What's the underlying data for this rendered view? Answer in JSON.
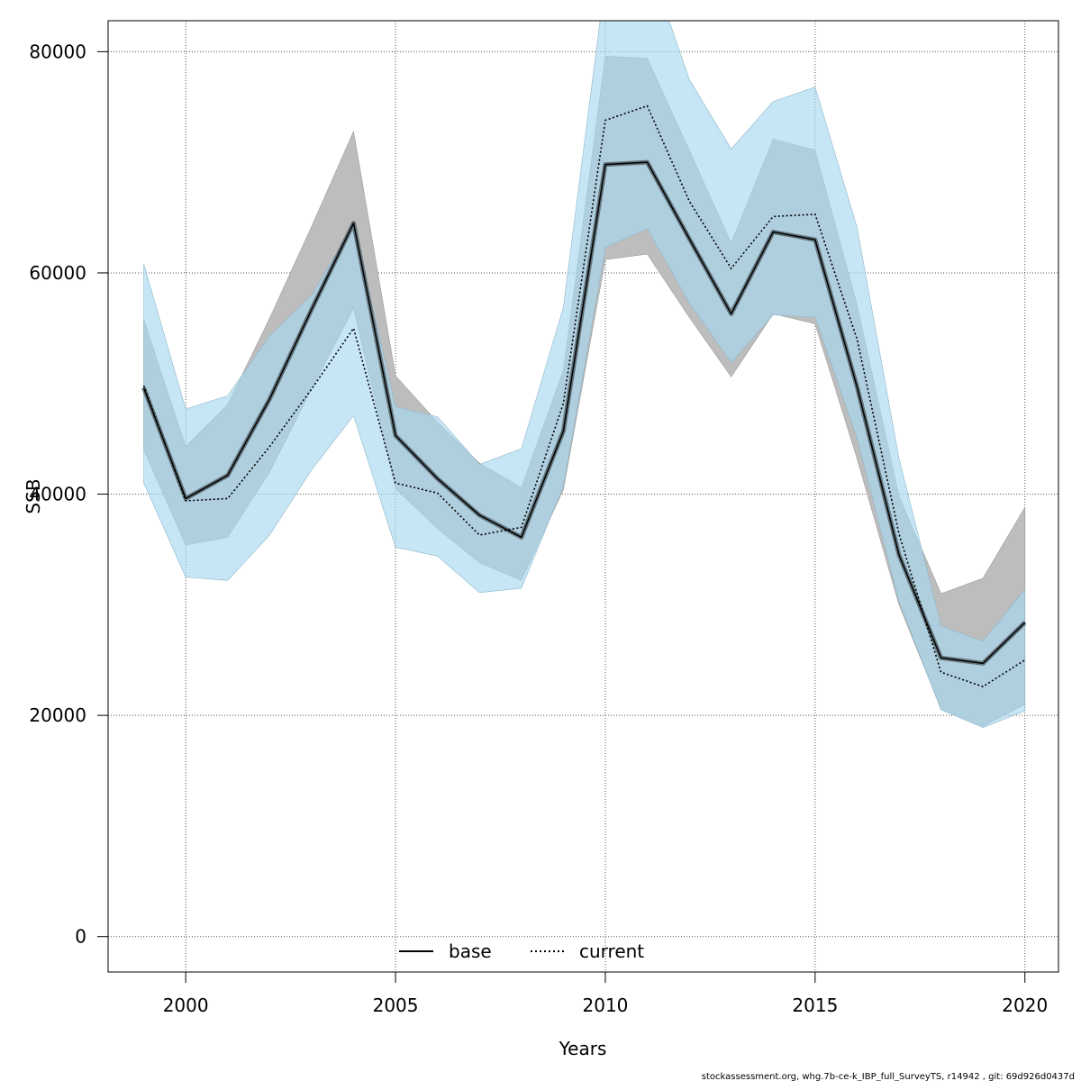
{
  "chart_data": {
    "type": "line",
    "xlabel": "Years",
    "ylabel": "SSB",
    "xlim": [
      1998.15,
      2020.8
    ],
    "ylim": [
      -3200,
      82800
    ],
    "x_ticks": [
      2000,
      2005,
      2010,
      2015,
      2020
    ],
    "y_ticks": [
      0,
      20000,
      40000,
      60000,
      80000
    ],
    "grid": true,
    "legend_position": "bottom-center",
    "x": [
      1999,
      2000,
      2001,
      2002,
      2003,
      2004,
      2005,
      2006,
      2007,
      2008,
      2009,
      2010,
      2011,
      2012,
      2013,
      2014,
      2015,
      2016,
      2017,
      2018,
      2019,
      2020
    ],
    "series": [
      {
        "name": "base",
        "line_style": "solid",
        "line_color": "#000000",
        "band_color": "#bdbdbd",
        "values": [
          49600,
          39600,
          41700,
          48600,
          56700,
          64500,
          45300,
          41400,
          38100,
          36100,
          45700,
          69800,
          70000,
          63100,
          56300,
          63700,
          63000,
          49700,
          34500,
          25200,
          24700,
          28400
        ],
        "lower": [
          44000,
          35400,
          36100,
          42000,
          49500,
          56800,
          40500,
          36900,
          33800,
          32200,
          40400,
          61200,
          61700,
          56000,
          50600,
          56300,
          55400,
          43200,
          30000,
          20600,
          19000,
          21000
        ],
        "upper": [
          55800,
          44300,
          48100,
          55900,
          64200,
          72800,
          50700,
          46500,
          42800,
          40600,
          51200,
          79600,
          79400,
          71100,
          62700,
          72100,
          71100,
          57100,
          39800,
          31000,
          32400,
          38800
        ]
      },
      {
        "name": "current",
        "line_style": "dotted",
        "line_color": "#000000",
        "band_color": "#a7d8f1",
        "values": [
          49800,
          39400,
          39600,
          44300,
          49500,
          55000,
          41000,
          40100,
          36300,
          37000,
          48200,
          73800,
          75100,
          66500,
          60400,
          65100,
          65300,
          54000,
          36400,
          23900,
          22600,
          25000
        ],
        "lower": [
          41000,
          32500,
          32200,
          36300,
          42200,
          47100,
          35200,
          34400,
          31100,
          31500,
          40700,
          62300,
          64000,
          57300,
          51900,
          56200,
          56000,
          45100,
          30300,
          20500,
          18900,
          20400
        ],
        "upper": [
          60800,
          47700,
          48900,
          54300,
          58000,
          64400,
          47900,
          47000,
          42700,
          44100,
          56900,
          86500,
          88600,
          77500,
          71200,
          75500,
          76800,
          64100,
          43200,
          28100,
          26700,
          31400
        ]
      }
    ]
  },
  "legend": {
    "base_label": "base",
    "current_label": "current"
  },
  "footer": {
    "text": "stockassessment.org, whg.7b-ce-k_IBP_full_SurveyTS, r14942 , git: 69d926d0437d"
  }
}
